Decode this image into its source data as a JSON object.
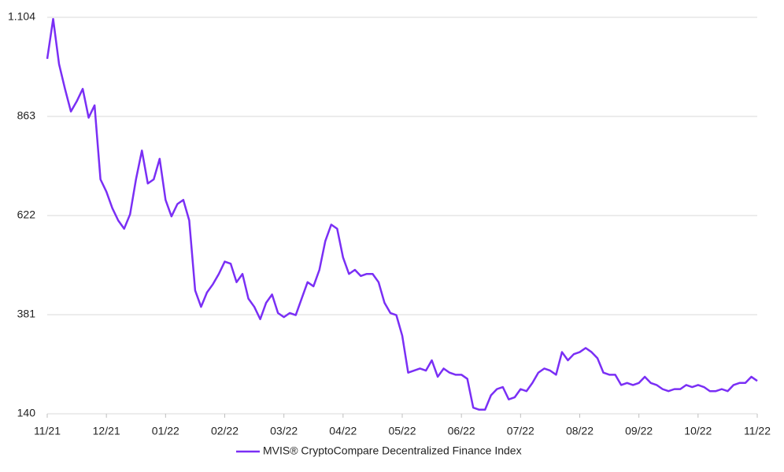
{
  "chart_data": {
    "type": "line",
    "categories": [
      "11/21",
      null,
      null,
      null,
      null,
      null,
      null,
      null,
      null,
      null,
      "12/21",
      null,
      null,
      null,
      null,
      null,
      null,
      null,
      null,
      null,
      "01/22",
      null,
      null,
      null,
      null,
      null,
      null,
      null,
      null,
      null,
      "02/22",
      null,
      null,
      null,
      null,
      null,
      null,
      null,
      null,
      null,
      "03/22",
      null,
      null,
      null,
      null,
      null,
      null,
      null,
      null,
      null,
      "04/22",
      null,
      null,
      null,
      null,
      null,
      null,
      null,
      null,
      null,
      "05/22",
      null,
      null,
      null,
      null,
      null,
      null,
      null,
      null,
      null,
      "06/22",
      null,
      null,
      null,
      null,
      null,
      null,
      null,
      null,
      null,
      "07/22",
      null,
      null,
      null,
      null,
      null,
      null,
      null,
      null,
      null,
      "08/22",
      null,
      null,
      null,
      null,
      null,
      null,
      null,
      null,
      null,
      "09/22",
      null,
      null,
      null,
      null,
      null,
      null,
      null,
      null,
      null,
      "10/22",
      null,
      null,
      null,
      null,
      null,
      null,
      null,
      null,
      null,
      "11/22"
    ],
    "series": [
      {
        "name": "MVIS® CryptoCompare Decentralized Finance Index",
        "color": "#7a2ff5",
        "values": [
          1003,
          1100,
          990,
          930,
          875,
          900,
          930,
          860,
          890,
          710,
          680,
          640,
          610,
          590,
          625,
          710,
          780,
          700,
          710,
          760,
          660,
          620,
          650,
          660,
          610,
          440,
          400,
          435,
          455,
          480,
          510,
          505,
          460,
          480,
          420,
          400,
          370,
          410,
          430,
          385,
          375,
          385,
          380,
          420,
          460,
          450,
          490,
          560,
          600,
          590,
          520,
          480,
          490,
          475,
          480,
          480,
          460,
          410,
          385,
          380,
          330,
          240,
          245,
          250,
          245,
          270,
          230,
          250,
          240,
          235,
          235,
          225,
          155,
          150,
          150,
          185,
          200,
          205,
          175,
          180,
          200,
          195,
          215,
          240,
          250,
          245,
          235,
          290,
          270,
          285,
          290,
          300,
          290,
          275,
          240,
          235,
          235,
          210,
          215,
          210,
          215,
          230,
          215,
          210,
          200,
          195,
          200,
          200,
          210,
          205,
          210,
          205,
          195,
          195,
          200,
          195,
          210,
          215,
          215,
          230,
          220
        ]
      }
    ],
    "ylim": [
      140,
      1104
    ],
    "yticks": [
      140,
      381,
      622,
      863,
      {
        "value": 1104,
        "label": "1.104"
      }
    ],
    "grid": true
  }
}
